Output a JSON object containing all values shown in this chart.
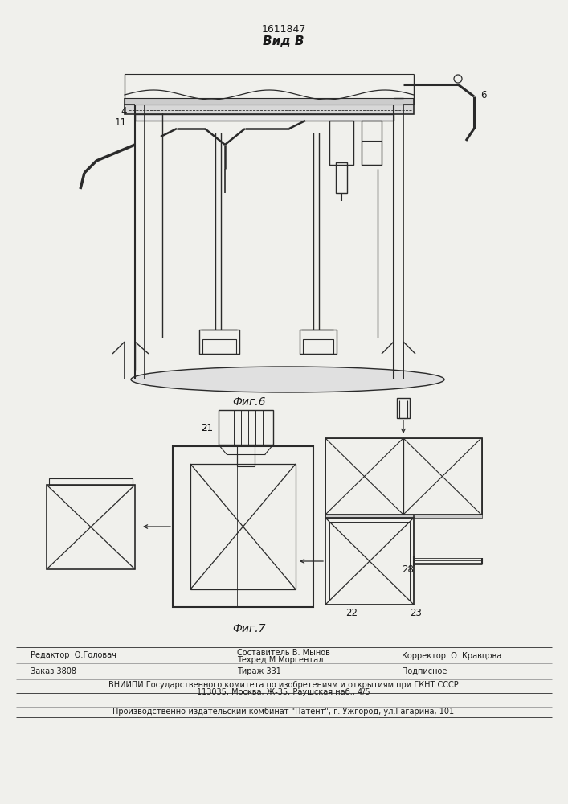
{
  "bg_color": "#f0f0ec",
  "patent_number": "1611847",
  "view_label": "Вид В",
  "fig6_label": "Фиг.6",
  "fig7_label": "Фиг.7",
  "footer_line1_left": "Редактор  О.Головач",
  "footer_compose": "Составитель В. Мынов",
  "footer_techred": "Техред М.Моргентал",
  "footer_line1_right": "Корректор  О. Кравцова",
  "footer_line2_left": "Заказ 3808",
  "footer_line2_center": "Тираж 331",
  "footer_line2_right": "Подписное",
  "footer_line3": "ВНИИПИ Государственного комитета по изобретениям и открытиям при ГКНТ СССР",
  "footer_line4": "113035, Москва, Ж-35, Раушская наб., 4/5",
  "footer_line5": "Производственно-издательский комбинат \"Патент\", г. Ужгород, ул.Гагарина, 101",
  "line_color": "#2a2a2a",
  "text_color": "#1a1a1a"
}
